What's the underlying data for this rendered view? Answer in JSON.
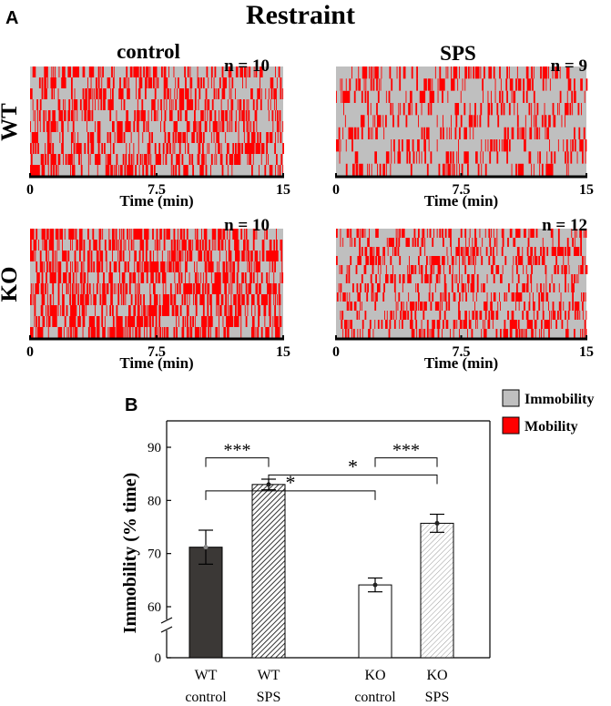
{
  "panel_a": {
    "letter": "A",
    "title": "Restraint",
    "col_labels": [
      "control",
      "SPS"
    ],
    "row_labels": [
      "WT",
      "KO"
    ],
    "raster_ticks": [
      "0",
      "7.5",
      "15"
    ],
    "raster_xlabel": "Time (min)",
    "panels": [
      {
        "group": "WT control",
        "n_label": "n = 10",
        "n": 10,
        "seed": 11,
        "mobility_fraction": 0.29
      },
      {
        "group": "WT SPS",
        "n_label": "n = 9",
        "n": 9,
        "seed": 23,
        "mobility_fraction": 0.17
      },
      {
        "group": "KO control",
        "n_label": "n = 10",
        "n": 10,
        "seed": 37,
        "mobility_fraction": 0.36
      },
      {
        "group": "KO SPS",
        "n_label": "n = 12",
        "n": 12,
        "seed": 51,
        "mobility_fraction": 0.24
      }
    ]
  },
  "legend": {
    "items": [
      {
        "label": "Immobility",
        "color": "#bfbfbf"
      },
      {
        "label": "Mobility",
        "color": "#ff0000"
      }
    ]
  },
  "colors": {
    "immobility": "#bfbfbf",
    "mobility": "#ff0000",
    "bar_dark": "#3b3836"
  },
  "chart_data": {
    "type": "bar",
    "panel_letter": "B",
    "ylabel": "Immobility (% time)",
    "xlabel": "",
    "ylim": [
      60,
      90
    ],
    "axis_break": true,
    "y_zero_label": "0",
    "yticks": [
      60,
      70,
      80,
      90
    ],
    "categories": [
      {
        "top": "WT",
        "bottom": "control"
      },
      {
        "top": "WT",
        "bottom": "SPS"
      },
      {
        "top": "KO",
        "bottom": "control"
      },
      {
        "top": "KO",
        "bottom": "SPS"
      }
    ],
    "values": [
      71.2,
      83.0,
      64.1,
      75.7
    ],
    "errors": [
      3.2,
      1.0,
      1.3,
      1.7
    ],
    "fills": [
      "dark",
      "hatch-dense",
      "white",
      "hatch-light"
    ],
    "significance": [
      {
        "from": 0,
        "to": 1,
        "label": "***",
        "y": 88.0
      },
      {
        "from": 2,
        "to": 3,
        "label": "***",
        "y": 88.0
      },
      {
        "from": 1,
        "to": 3,
        "label": "*",
        "y": 84.8
      },
      {
        "from": 0,
        "to": 2,
        "label": "*",
        "y": 81.8
      }
    ]
  }
}
